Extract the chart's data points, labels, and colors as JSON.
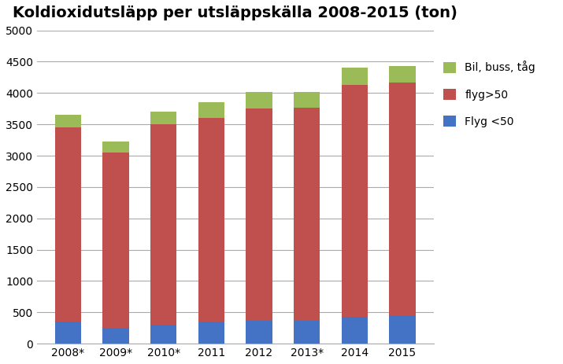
{
  "title": "Koldioxidutsläpp per utsläppskälla 2008-2015 (ton)",
  "categories": [
    "2008*",
    "2009*",
    "2010*",
    "2011",
    "2012",
    "2013*",
    "2014",
    "2015"
  ],
  "flyg_under50": [
    350,
    250,
    300,
    350,
    370,
    370,
    430,
    450
  ],
  "flyg_over50": [
    3100,
    2800,
    3200,
    3250,
    3380,
    3400,
    3700,
    3720
  ],
  "bil_buss_tag": [
    200,
    175,
    200,
    250,
    270,
    250,
    280,
    265
  ],
  "color_flyg_under50": "#4472C4",
  "color_flyg_over50": "#C0504D",
  "color_bil_buss_tag": "#9BBB59",
  "legend_labels": [
    "Bil, buss, tåg",
    "flyg>50",
    "Flyg <50"
  ],
  "ylim": [
    0,
    5000
  ],
  "yticks": [
    0,
    500,
    1000,
    1500,
    2000,
    2500,
    3000,
    3500,
    4000,
    4500,
    5000
  ],
  "title_fontsize": 14,
  "bar_width": 0.55,
  "background_color": "#FFFFFF"
}
